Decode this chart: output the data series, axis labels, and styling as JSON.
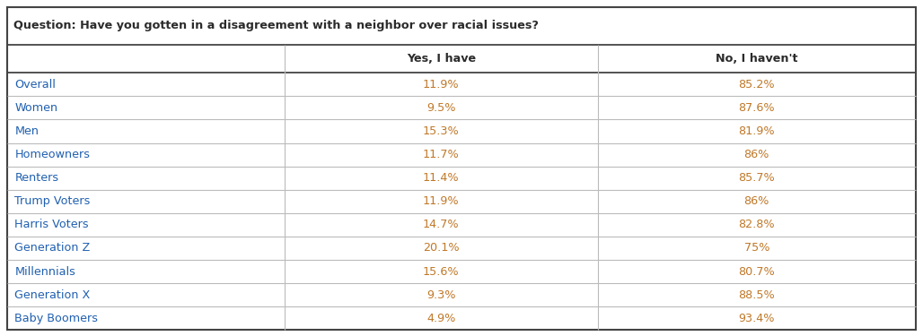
{
  "title": "Question: Have you gotten in a disagreement with a neighbor over racial issues?",
  "col_headers": [
    "",
    "Yes, I have",
    "No, I haven't"
  ],
  "rows": [
    [
      "Overall",
      "11.9%",
      "85.2%"
    ],
    [
      "Women",
      "9.5%",
      "87.6%"
    ],
    [
      "Men",
      "15.3%",
      "81.9%"
    ],
    [
      "Homeowners",
      "11.7%",
      "86%"
    ],
    [
      "Renters",
      "11.4%",
      "85.7%"
    ],
    [
      "Trump Voters",
      "11.9%",
      "86%"
    ],
    [
      "Harris Voters",
      "14.7%",
      "82.8%"
    ],
    [
      "Generation Z",
      "20.1%",
      "75%"
    ],
    [
      "Millennials",
      "15.6%",
      "80.7%"
    ],
    [
      "Generation X",
      "9.3%",
      "88.5%"
    ],
    [
      "Baby Boomers",
      "4.9%",
      "93.4%"
    ]
  ],
  "title_color": "#2b2b2b",
  "header_text_color": "#2b2b2b",
  "row_label_color": "#2060b0",
  "data_color": "#c07828",
  "outer_border_color": "#444444",
  "inner_line_color": "#bbbbbb",
  "header_line_color": "#444444",
  "title_fontsize": 9.2,
  "header_fontsize": 9.2,
  "data_fontsize": 9.2,
  "fig_width": 10.28,
  "fig_height": 3.75,
  "dpi": 100
}
